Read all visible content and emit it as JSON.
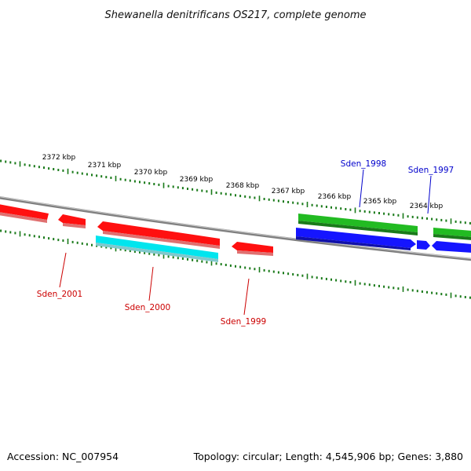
{
  "title": "Shewanella denitrificans OS217, complete genome",
  "footer": {
    "accession": "Accession: NC_007954",
    "topology": "Topology: circular; Length: 4,545,906 bp; Genes: 3,880"
  },
  "colors": {
    "backbone": "#808080",
    "tick": "#1a7a1a",
    "forward_gene": "#22bb22",
    "forward_operon": "#1515ff",
    "reverse_gene": "#ff1010",
    "reverse_operon": "#00e5ee",
    "label_forward": "#0000cc",
    "label_reverse": "#cc0000"
  },
  "scale": {
    "labels": [
      "2372 kbp",
      "2371 kbp",
      "2370 kbp",
      "2369 kbp",
      "2368 kbp",
      "2367 kbp",
      "2366 kbp",
      "2365 kbp",
      "2364 kbp"
    ]
  },
  "gene_labels": [
    {
      "name": "Sden_2001",
      "strand": "reverse"
    },
    {
      "name": "Sden_2000",
      "strand": "reverse"
    },
    {
      "name": "Sden_1999",
      "strand": "reverse"
    },
    {
      "name": "Sden_1998",
      "strand": "forward"
    },
    {
      "name": "Sden_1997",
      "strand": "forward"
    }
  ]
}
